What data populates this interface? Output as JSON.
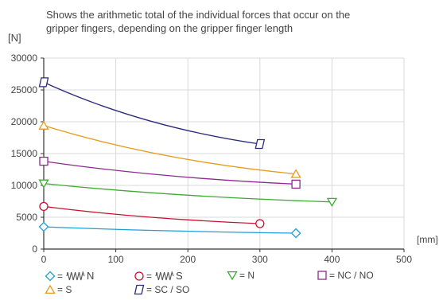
{
  "description": {
    "line1": "Shows the arithmetic total of the individual forces that occur on the",
    "line2": "gripper fingers, depending on the gripper finger length"
  },
  "chart_data": {
    "type": "line",
    "ylabel": "[N]",
    "xlabel": "[mm]",
    "xlim": [
      0,
      500
    ],
    "ylim": [
      0,
      30000
    ],
    "xticks": [
      0,
      100,
      200,
      300,
      400,
      500
    ],
    "yticks": [
      0,
      5000,
      10000,
      15000,
      20000,
      25000,
      30000
    ],
    "grid": true,
    "legend_position": "bottom",
    "series": [
      {
        "name": "= ⌇ N",
        "legend_text": "N",
        "prefix": "=",
        "marker": "diamond",
        "spring": true,
        "color": "#1e9fd8",
        "x": [
          0,
          350
        ],
        "y": [
          3500,
          2500
        ]
      },
      {
        "name": "= ⌇ S",
        "legend_text": "S",
        "prefix": "=",
        "marker": "circle",
        "spring": true,
        "color": "#c8102e",
        "x": [
          0,
          300
        ],
        "y": [
          6700,
          4000
        ]
      },
      {
        "name": "= N",
        "legend_text": "= N",
        "prefix": "",
        "marker": "triangle-down",
        "spring": false,
        "color": "#3daa35",
        "x": [
          0,
          400
        ],
        "y": [
          10300,
          7400
        ]
      },
      {
        "name": "= NC / NO",
        "legend_text": "= NC / NO",
        "prefix": "",
        "marker": "square",
        "spring": false,
        "color": "#8e2a8e",
        "x": [
          0,
          350
        ],
        "y": [
          13800,
          10200
        ]
      },
      {
        "name": "= S",
        "legend_text": "= S",
        "prefix": "",
        "marker": "triangle-up",
        "spring": false,
        "color": "#e89a1a",
        "x": [
          0,
          350
        ],
        "y": [
          19400,
          11800
        ]
      },
      {
        "name": "= SC / SO",
        "legend_text": "= SC / SO",
        "prefix": "",
        "marker": "parallelogram",
        "spring": false,
        "color": "#2b2a7a",
        "x": [
          0,
          300
        ],
        "y": [
          26200,
          16500
        ]
      }
    ]
  }
}
